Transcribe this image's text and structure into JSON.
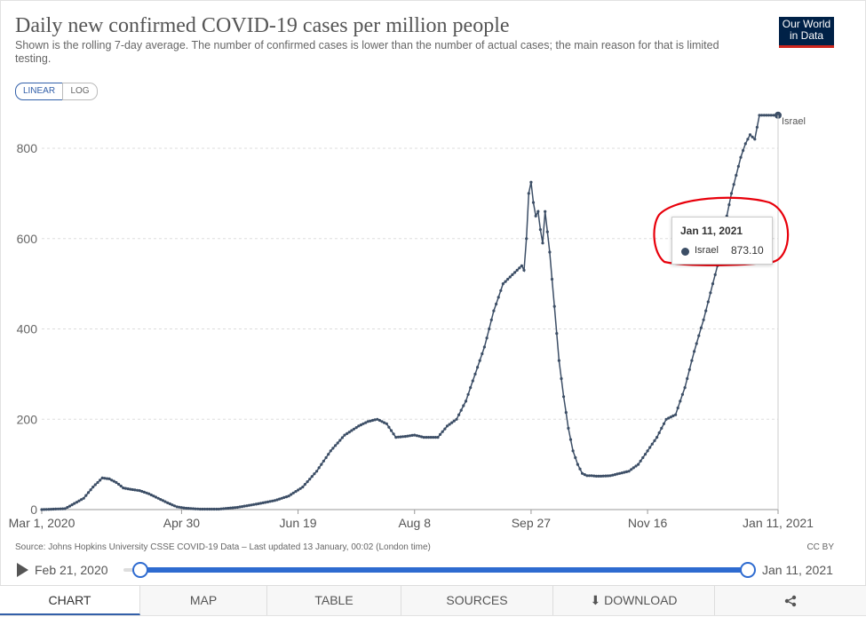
{
  "header": {
    "title": "Daily new confirmed COVID-19 cases per million people",
    "subtitle": "Shown is the rolling 7-day average. The number of confirmed cases is lower than the number of actual cases; the main reason for that is limited testing.",
    "logo_line1": "Our World",
    "logo_line2": "in Data"
  },
  "scale_toggle": {
    "linear": "LINEAR",
    "log": "LOG",
    "selected": "LINEAR"
  },
  "chart_data": {
    "type": "line",
    "title": "Daily new confirmed COVID-19 cases per million people",
    "xlabel": "",
    "ylabel": "",
    "ylim": [
      0,
      880
    ],
    "yticks": [
      0,
      200,
      400,
      600,
      800
    ],
    "xtick_labels": [
      "Mar 1, 2020",
      "Apr 30",
      "Jun 19",
      "Aug 8",
      "Sep 27",
      "Nov 16",
      "Jan 11, 2021"
    ],
    "xtick_days": [
      0,
      60,
      110,
      160,
      210,
      260,
      316
    ],
    "x_start": "Mar 1, 2020",
    "x_end": "Jan 11, 2021",
    "series": [
      {
        "name": "Israel",
        "color": "#3c4e66",
        "days": [
          0,
          10,
          18,
          22,
          26,
          29,
          32,
          35,
          38,
          42,
          46,
          50,
          54,
          58,
          62,
          68,
          76,
          84,
          92,
          100,
          106,
          112,
          118,
          124,
          130,
          136,
          140,
          144,
          148,
          152,
          156,
          160,
          164,
          170,
          174,
          178,
          182,
          186,
          190,
          194,
          198,
          202,
          206,
          207,
          208,
          209,
          210,
          211,
          212,
          213,
          214,
          215,
          216,
          218,
          220,
          222,
          224,
          226,
          228,
          230,
          232,
          234,
          236,
          238,
          240,
          244,
          248,
          252,
          256,
          260,
          264,
          268,
          272,
          276,
          280,
          284,
          288,
          292,
          294,
          296,
          298,
          300,
          302,
          304,
          306,
          308,
          310,
          312,
          313,
          314,
          315,
          316
        ],
        "values": [
          0,
          2,
          25,
          50,
          70,
          68,
          60,
          48,
          45,
          42,
          35,
          25,
          15,
          6,
          3,
          1,
          1,
          5,
          12,
          20,
          30,
          50,
          85,
          130,
          165,
          185,
          195,
          200,
          190,
          160,
          162,
          165,
          160,
          160,
          185,
          200,
          240,
          300,
          360,
          440,
          500,
          520,
          540,
          530,
          600,
          700,
          725,
          680,
          650,
          660,
          620,
          590,
          660,
          570,
          450,
          330,
          250,
          180,
          130,
          100,
          80,
          75,
          75,
          74,
          74,
          75,
          80,
          85,
          100,
          130,
          160,
          200,
          210,
          270,
          350,
          420,
          500,
          580,
          650,
          700,
          740,
          780,
          810,
          830,
          820,
          873.1,
          873.1,
          873.1,
          873.1,
          873.1,
          873.1,
          873.1
        ],
        "end_label": "Israel",
        "last_value": 873.1
      }
    ],
    "tooltip": {
      "date": "Jan 11, 2021",
      "series": "Israel",
      "value": "873.10"
    }
  },
  "footer": {
    "source": "Source: Johns Hopkins University CSSE COVID-19 Data – Last updated 13 January, 00:02 (London time)",
    "license": "CC BY"
  },
  "timeline": {
    "start": "Feb 21, 2020",
    "end": "Jan 11, 2021",
    "accent": "#2e6bd0"
  },
  "tabs": [
    {
      "label": "CHART",
      "active": true
    },
    {
      "label": "MAP",
      "active": false
    },
    {
      "label": "TABLE",
      "active": false
    },
    {
      "label": "SOURCES",
      "active": false
    },
    {
      "label": "DOWNLOAD",
      "active": false
    }
  ]
}
